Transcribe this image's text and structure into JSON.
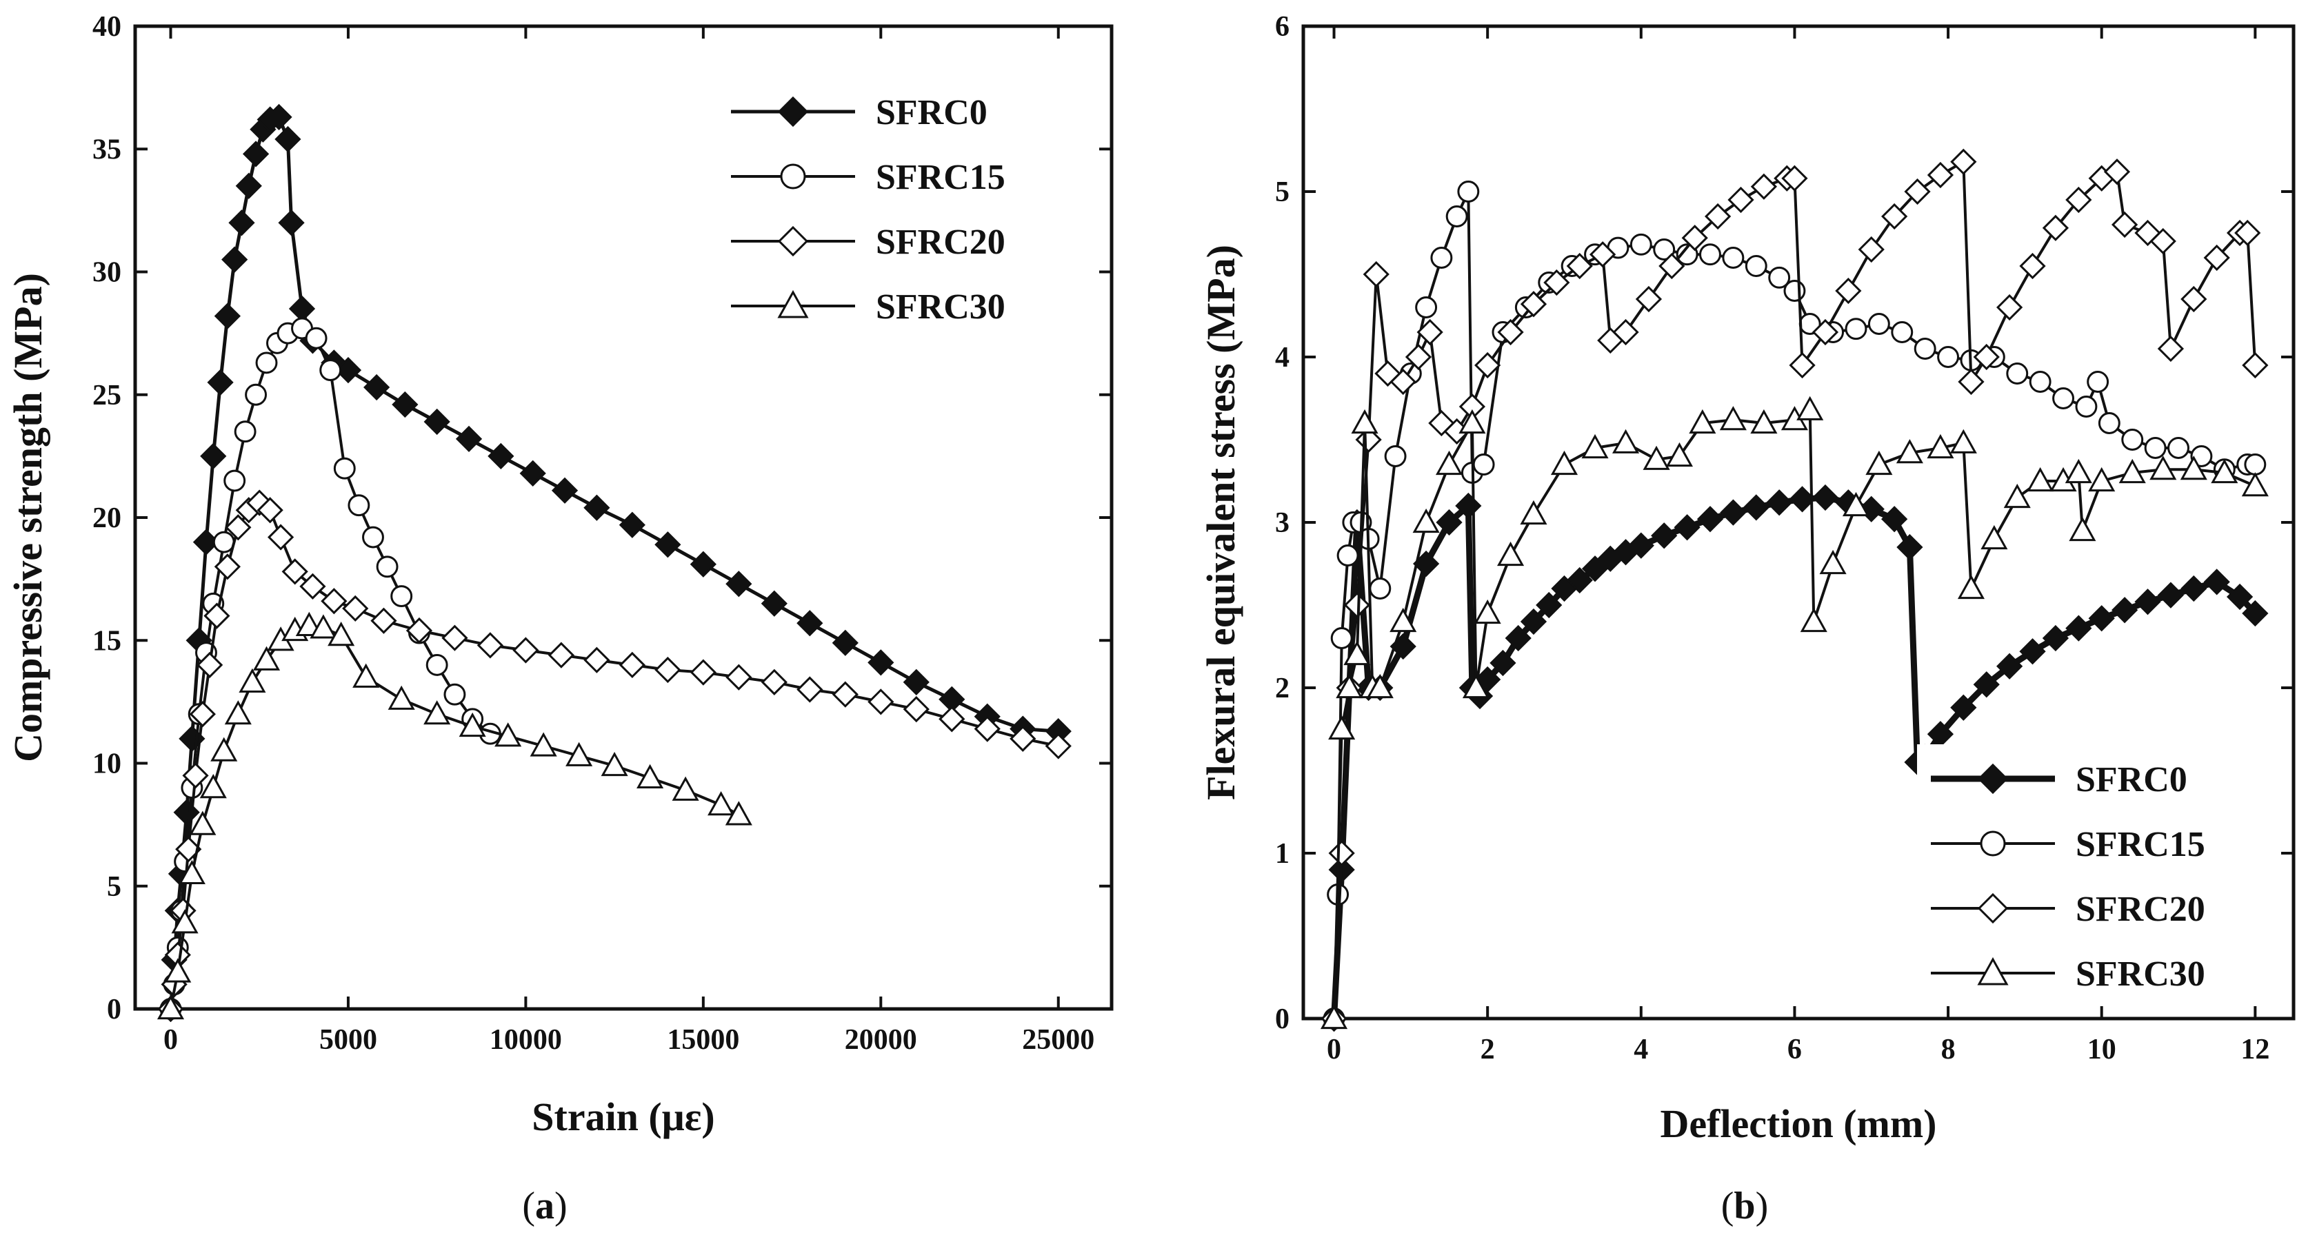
{
  "chart_data": [
    {
      "type": "line",
      "panel": "a",
      "caption_open": "(",
      "caption_letter": "a",
      "caption_close": ")",
      "xlabel": "Strain (με)",
      "ylabel": "Compressive strength (MPa)",
      "xlim": [
        -1000,
        26500
      ],
      "ylim": [
        0,
        40
      ],
      "xticks": [
        0,
        5000,
        10000,
        15000,
        20000,
        25000
      ],
      "yticks": [
        0,
        5,
        10,
        15,
        20,
        25,
        30,
        35,
        40
      ],
      "legend_position": "top-right",
      "series": [
        {
          "name": "SFRC0",
          "marker": "diamond-filled",
          "x": [
            0,
            100,
            200,
            300,
            450,
            600,
            800,
            1000,
            1200,
            1400,
            1600,
            1800,
            2000,
            2200,
            2400,
            2600,
            2800,
            3050,
            3300,
            3400,
            3700,
            4000,
            4600,
            5000,
            5800,
            6600,
            7500,
            8400,
            9300,
            10200,
            11100,
            12000,
            13000,
            14000,
            15000,
            16000,
            17000,
            18000,
            19000,
            20000,
            21000,
            22000,
            23000,
            24000,
            25000
          ],
          "y": [
            0,
            2,
            4,
            5.5,
            8,
            11,
            15,
            19,
            22.5,
            25.5,
            28.2,
            30.5,
            32,
            33.5,
            34.8,
            35.8,
            36.2,
            36.3,
            35.4,
            32,
            28.5,
            27.2,
            26.3,
            26,
            25.3,
            24.6,
            23.9,
            23.2,
            22.5,
            21.8,
            21.1,
            20.4,
            19.7,
            18.9,
            18.1,
            17.3,
            16.5,
            15.7,
            14.9,
            14.1,
            13.3,
            12.6,
            11.9,
            11.4,
            11.3
          ]
        },
        {
          "name": "SFRC15",
          "marker": "circle-open",
          "x": [
            0,
            100,
            200,
            300,
            400,
            600,
            800,
            1000,
            1200,
            1500,
            1800,
            2100,
            2400,
            2700,
            3000,
            3300,
            3700,
            4100,
            4500,
            4900,
            5300,
            5700,
            6100,
            6500,
            7000,
            7500,
            8000,
            8500,
            9000
          ],
          "y": [
            0,
            1,
            2.5,
            4,
            6,
            9,
            12,
            14.5,
            16.5,
            19,
            21.5,
            23.5,
            25,
            26.3,
            27.1,
            27.5,
            27.7,
            27.3,
            26,
            22,
            20.5,
            19.2,
            18,
            16.8,
            15.3,
            14,
            12.8,
            11.8,
            11.2
          ]
        },
        {
          "name": "SFRC20",
          "marker": "diamond-open",
          "x": [
            0,
            100,
            200,
            350,
            500,
            700,
            900,
            1100,
            1300,
            1600,
            1900,
            2200,
            2500,
            2800,
            3100,
            3500,
            4000,
            4600,
            5200,
            6000,
            7000,
            8000,
            9000,
            10000,
            11000,
            12000,
            13000,
            14000,
            15000,
            16000,
            17000,
            18000,
            19000,
            20000,
            21000,
            22000,
            23000,
            24000,
            25000
          ],
          "y": [
            0,
            1,
            2.2,
            4,
            6.5,
            9.5,
            12,
            14,
            16,
            18,
            19.6,
            20.3,
            20.6,
            20.3,
            19.2,
            17.8,
            17.2,
            16.6,
            16.3,
            15.8,
            15.4,
            15.1,
            14.8,
            14.6,
            14.4,
            14.2,
            14.0,
            13.8,
            13.7,
            13.5,
            13.3,
            13.0,
            12.8,
            12.5,
            12.2,
            11.8,
            11.4,
            11.0,
            10.7
          ]
        },
        {
          "name": "SFRC30",
          "marker": "triangle-open",
          "x": [
            0,
            200,
            400,
            600,
            900,
            1200,
            1500,
            1900,
            2300,
            2700,
            3100,
            3500,
            3900,
            4300,
            4800,
            5500,
            6500,
            7500,
            8500,
            9500,
            10500,
            11500,
            12500,
            13500,
            14500,
            15500,
            16000
          ],
          "y": [
            0,
            1.5,
            3.5,
            5.5,
            7.5,
            9,
            10.5,
            12,
            13.3,
            14.2,
            15,
            15.4,
            15.6,
            15.5,
            15.2,
            13.5,
            12.6,
            12.0,
            11.5,
            11.1,
            10.7,
            10.3,
            9.9,
            9.4,
            8.9,
            8.3,
            7.9
          ]
        }
      ]
    },
    {
      "type": "line",
      "panel": "b",
      "caption_open": "(",
      "caption_letter": "b",
      "caption_close": ")",
      "xlabel": "Deflection (mm)",
      "ylabel": "Flexural equivalent stress (MPa)",
      "xlim": [
        -0.4,
        12.5
      ],
      "ylim": [
        0,
        6
      ],
      "xticks": [
        0,
        2,
        4,
        6,
        8,
        10,
        12
      ],
      "yticks": [
        0,
        1,
        2,
        3,
        4,
        5,
        6
      ],
      "legend_position": "bottom-right",
      "series": [
        {
          "name": "SFRC0",
          "marker": "diamond-filled",
          "x": [
            0,
            0.1,
            0.2,
            0.3,
            0.45,
            0.6,
            0.9,
            1.2,
            1.5,
            1.75,
            1.8,
            1.9,
            2.0,
            2.2,
            2.4,
            2.6,
            2.8,
            3.0,
            3.2,
            3.4,
            3.6,
            3.8,
            4.0,
            4.3,
            4.6,
            4.9,
            5.2,
            5.5,
            5.8,
            6.1,
            6.4,
            6.7,
            7.0,
            7.3,
            7.5,
            7.6,
            7.7,
            7.9,
            8.2,
            8.5,
            8.8,
            9.1,
            9.4,
            9.7,
            10.0,
            10.3,
            10.6,
            10.9,
            11.2,
            11.5,
            11.8,
            12.0
          ],
          "y": [
            0,
            0.9,
            2.0,
            3.0,
            2.0,
            2.0,
            2.25,
            2.75,
            3.0,
            3.1,
            2.0,
            1.95,
            2.05,
            2.15,
            2.3,
            2.4,
            2.5,
            2.6,
            2.65,
            2.72,
            2.78,
            2.82,
            2.86,
            2.92,
            2.97,
            3.02,
            3.06,
            3.09,
            3.12,
            3.14,
            3.15,
            3.12,
            3.08,
            3.02,
            2.85,
            1.55,
            1.58,
            1.72,
            1.88,
            2.02,
            2.13,
            2.22,
            2.3,
            2.36,
            2.42,
            2.47,
            2.52,
            2.56,
            2.6,
            2.64,
            2.55,
            2.45
          ]
        },
        {
          "name": "SFRC15",
          "marker": "circle-open",
          "x": [
            0,
            0.05,
            0.1,
            0.18,
            0.25,
            0.35,
            0.45,
            0.6,
            0.8,
            1.0,
            1.2,
            1.4,
            1.6,
            1.75,
            1.8,
            1.95,
            2.2,
            2.5,
            2.8,
            3.1,
            3.4,
            3.7,
            4.0,
            4.3,
            4.6,
            4.9,
            5.2,
            5.5,
            5.8,
            6.0,
            6.2,
            6.5,
            6.8,
            7.1,
            7.4,
            7.7,
            8.0,
            8.3,
            8.6,
            8.9,
            9.2,
            9.5,
            9.8,
            9.95,
            10.1,
            10.4,
            10.7,
            11.0,
            11.3,
            11.6,
            11.9,
            12.0
          ],
          "y": [
            0,
            0.75,
            2.3,
            2.8,
            3.0,
            3.0,
            2.9,
            2.6,
            3.4,
            3.9,
            4.3,
            4.6,
            4.85,
            5.0,
            3.3,
            3.35,
            4.15,
            4.3,
            4.45,
            4.55,
            4.62,
            4.66,
            4.68,
            4.65,
            4.62,
            4.62,
            4.6,
            4.55,
            4.48,
            4.4,
            4.2,
            4.15,
            4.17,
            4.2,
            4.15,
            4.05,
            4.0,
            3.98,
            4.0,
            3.9,
            3.85,
            3.75,
            3.7,
            3.85,
            3.6,
            3.5,
            3.45,
            3.45,
            3.4,
            3.32,
            3.35,
            3.35
          ]
        },
        {
          "name": "SFRC20",
          "marker": "diamond-open",
          "x": [
            0,
            0.1,
            0.2,
            0.3,
            0.45,
            0.55,
            0.7,
            0.9,
            1.1,
            1.25,
            1.4,
            1.6,
            1.8,
            2.0,
            2.3,
            2.6,
            2.9,
            3.2,
            3.5,
            3.6,
            3.8,
            4.1,
            4.4,
            4.7,
            5.0,
            5.3,
            5.6,
            5.9,
            6.0,
            6.1,
            6.4,
            6.7,
            7.0,
            7.3,
            7.6,
            7.9,
            8.2,
            8.3,
            8.5,
            8.8,
            9.1,
            9.4,
            9.7,
            10.0,
            10.2,
            10.3,
            10.6,
            10.8,
            10.9,
            11.2,
            11.5,
            11.8,
            11.9,
            12.0
          ],
          "y": [
            0,
            1.0,
            2.0,
            2.5,
            3.5,
            4.5,
            3.9,
            3.85,
            4.0,
            4.15,
            3.6,
            3.55,
            3.7,
            3.95,
            4.15,
            4.32,
            4.45,
            4.55,
            4.62,
            4.1,
            4.15,
            4.35,
            4.55,
            4.72,
            4.85,
            4.95,
            5.03,
            5.08,
            5.08,
            3.95,
            4.15,
            4.4,
            4.65,
            4.85,
            5.0,
            5.1,
            5.18,
            3.85,
            4.0,
            4.3,
            4.55,
            4.78,
            4.95,
            5.08,
            5.12,
            4.8,
            4.75,
            4.7,
            4.05,
            4.35,
            4.6,
            4.75,
            4.75,
            3.95
          ]
        },
        {
          "name": "SFRC30",
          "marker": "triangle-open",
          "x": [
            0,
            0.1,
            0.2,
            0.3,
            0.4,
            0.5,
            0.6,
            0.9,
            1.2,
            1.5,
            1.8,
            1.85,
            2.0,
            2.3,
            2.6,
            3.0,
            3.4,
            3.8,
            4.2,
            4.5,
            4.8,
            5.2,
            5.6,
            6.0,
            6.2,
            6.25,
            6.5,
            6.8,
            7.1,
            7.5,
            7.9,
            8.2,
            8.3,
            8.6,
            8.9,
            9.2,
            9.5,
            9.7,
            9.75,
            10.0,
            10.4,
            10.8,
            11.2,
            11.6,
            12.0
          ],
          "y": [
            0,
            1.75,
            2.0,
            2.2,
            3.6,
            2.0,
            2.0,
            2.4,
            3.0,
            3.35,
            3.6,
            2.0,
            2.45,
            2.8,
            3.05,
            3.35,
            3.45,
            3.48,
            3.38,
            3.4,
            3.6,
            3.62,
            3.6,
            3.62,
            3.68,
            2.4,
            2.75,
            3.1,
            3.35,
            3.42,
            3.45,
            3.48,
            2.6,
            2.9,
            3.15,
            3.25,
            3.25,
            3.3,
            2.95,
            3.25,
            3.3,
            3.32,
            3.32,
            3.3,
            3.22
          ]
        }
      ]
    }
  ]
}
